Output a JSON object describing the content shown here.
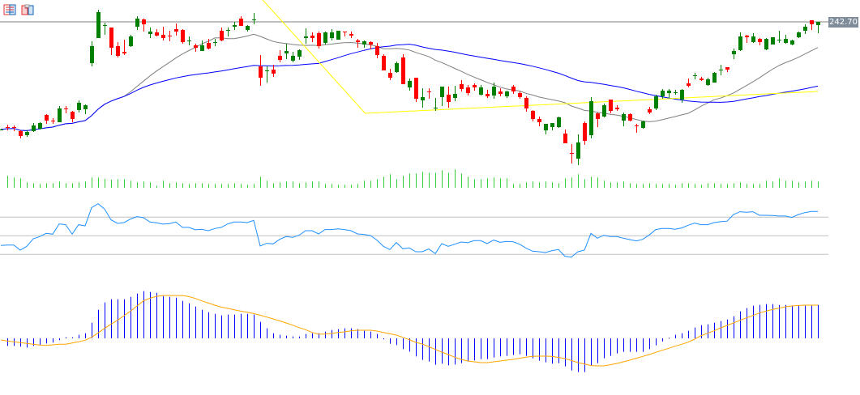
{
  "toolbar": {
    "icons": [
      "list-view-icon",
      "template-icon"
    ]
  },
  "price_label": "242.70",
  "colors": {
    "bull": "#008000",
    "bear": "#ff0000",
    "volume": "#32cd32",
    "rsi": "#1e90ff",
    "macd_hist": "#0000ff",
    "macd_signal": "#ffa500",
    "ma_fast": "#808080",
    "ma_slow": "#0000ff",
    "trendline": "#ffff00",
    "levels": "#c0c0c0",
    "price_line": "#808080"
  },
  "chart_data": {
    "type": "candlestick",
    "title": "",
    "last_price": 242.7,
    "ma_fast_period": 20,
    "ma_slow_period": 50,
    "ohlc": [
      [
        229.4,
        229.5,
        229.3,
        229.4
      ],
      [
        229.7,
        230.0,
        229.3,
        229.6
      ],
      [
        229.7,
        229.9,
        229.2,
        229.6
      ],
      [
        229.2,
        229.3,
        228.3,
        228.6
      ],
      [
        228.7,
        229.3,
        228.5,
        229.1
      ],
      [
        229.2,
        230.2,
        229.1,
        229.9
      ],
      [
        229.5,
        230.3,
        229.4,
        230.2
      ],
      [
        231.2,
        231.3,
        230.1,
        230.5
      ],
      [
        230.5,
        230.8,
        230.1,
        230.4
      ],
      [
        230.3,
        232.3,
        230.3,
        232.0
      ],
      [
        232.0,
        232.3,
        231.4,
        231.9
      ],
      [
        231.6,
        231.7,
        230.3,
        230.7
      ],
      [
        231.8,
        233.0,
        231.5,
        232.7
      ],
      [
        231.9,
        232.5,
        231.3,
        232.4
      ],
      [
        237.6,
        240.3,
        237.2,
        239.7
      ],
      [
        240.7,
        244.2,
        240.7,
        243.9
      ],
      [
        242.2,
        242.6,
        241.1,
        242.3
      ],
      [
        242.0,
        242.0,
        238.6,
        239.5
      ],
      [
        239.7,
        240.2,
        238.3,
        238.5
      ],
      [
        239.0,
        240.5,
        238.6,
        238.8
      ],
      [
        239.7,
        241.1,
        239.6,
        240.9
      ],
      [
        242.1,
        243.4,
        241.7,
        243.1
      ],
      [
        243.0,
        243.1,
        241.5,
        242.4
      ],
      [
        241.2,
        242.0,
        240.7,
        241.5
      ],
      [
        241.4,
        241.8,
        240.9,
        241.0
      ],
      [
        241.1,
        242.1,
        240.4,
        240.7
      ],
      [
        241.0,
        241.6,
        240.3,
        240.9
      ],
      [
        241.8,
        242.5,
        241.0,
        241.5
      ],
      [
        241.7,
        241.8,
        240.0,
        240.2
      ],
      [
        240.4,
        240.9,
        239.8,
        240.4
      ],
      [
        239.8,
        240.0,
        239.0,
        239.5
      ],
      [
        239.1,
        240.4,
        239.1,
        239.8
      ],
      [
        240.1,
        240.6,
        239.3,
        239.4
      ],
      [
        240.2,
        240.6,
        239.7,
        240.2
      ],
      [
        241.6,
        242.0,
        240.3,
        240.4
      ],
      [
        241.6,
        242.0,
        240.9,
        241.7
      ],
      [
        242.1,
        242.7,
        241.7,
        242.3
      ],
      [
        243.1,
        243.4,
        242.2,
        242.2
      ],
      [
        241.7,
        242.3,
        241.5,
        242.2
      ],
      [
        242.9,
        243.8,
        242.4,
        243.0
      ],
      [
        237.2,
        238.6,
        234.8,
        235.8
      ],
      [
        236.7,
        237.2,
        235.2,
        236.7
      ],
      [
        236.8,
        237.4,
        235.9,
        236.3
      ],
      [
        238.5,
        239.2,
        237.7,
        238.0
      ],
      [
        238.8,
        240.0,
        238.1,
        239.1
      ],
      [
        237.9,
        239.0,
        237.7,
        238.5
      ],
      [
        238.4,
        239.3,
        238.0,
        239.2
      ],
      [
        240.7,
        241.9,
        240.0,
        240.9
      ],
      [
        241.0,
        241.4,
        240.2,
        240.7
      ],
      [
        241.3,
        241.5,
        239.4,
        239.7
      ],
      [
        240.1,
        241.5,
        239.9,
        241.4
      ],
      [
        240.7,
        241.8,
        240.4,
        241.4
      ],
      [
        240.5,
        241.6,
        240.5,
        241.6
      ],
      [
        241.5,
        241.5,
        240.9,
        241.4
      ],
      [
        241.2,
        241.5,
        240.7,
        241.0
      ],
      [
        240.4,
        240.6,
        239.5,
        240.2
      ],
      [
        239.9,
        240.4,
        239.5,
        240.3
      ],
      [
        240.2,
        240.3,
        239.3,
        239.9
      ],
      [
        239.7,
        240.1,
        238.2,
        238.6
      ],
      [
        238.5,
        238.7,
        236.7,
        236.7
      ],
      [
        236.4,
        236.9,
        235.5,
        235.8
      ],
      [
        236.5,
        237.8,
        236.4,
        237.6
      ],
      [
        238.3,
        238.7,
        235.0,
        235.0
      ],
      [
        234.6,
        235.7,
        234.2,
        235.4
      ],
      [
        235.8,
        235.8,
        232.8,
        233.2
      ],
      [
        233.0,
        234.5,
        232.1,
        233.4
      ],
      [
        234.1,
        234.5,
        233.2,
        234.0
      ],
      [
        232.0,
        233.3,
        231.7,
        232.1
      ],
      [
        233.4,
        234.7,
        232.3,
        234.7
      ],
      [
        233.7,
        234.7,
        232.1,
        232.8
      ],
      [
        233.3,
        234.8,
        232.9,
        233.8
      ],
      [
        235.0,
        235.5,
        234.1,
        234.4
      ],
      [
        234.6,
        234.9,
        233.6,
        233.9
      ],
      [
        234.9,
        235.1,
        234.2,
        234.6
      ],
      [
        233.7,
        234.9,
        233.6,
        234.6
      ],
      [
        233.8,
        234.3,
        233.3,
        233.5
      ],
      [
        233.6,
        235.2,
        233.2,
        234.7
      ],
      [
        234.1,
        234.5,
        233.5,
        233.8
      ],
      [
        233.5,
        234.2,
        233.3,
        234.1
      ],
      [
        234.7,
        234.9,
        233.8,
        234.1
      ],
      [
        233.9,
        234.1,
        233.2,
        233.4
      ],
      [
        233.3,
        233.5,
        231.6,
        232.0
      ],
      [
        231.7,
        231.8,
        230.4,
        230.7
      ],
      [
        230.7,
        231.0,
        229.8,
        230.3
      ],
      [
        229.3,
        230.1,
        228.8,
        230.1
      ],
      [
        229.7,
        230.2,
        229.3,
        230.2
      ],
      [
        229.7,
        231.0,
        229.6,
        230.9
      ],
      [
        228.9,
        229.4,
        227.7,
        227.7
      ],
      [
        226.5,
        227.6,
        225.2,
        226.4
      ],
      [
        225.8,
        228.8,
        225.0,
        227.8
      ],
      [
        230.2,
        230.4,
        227.5,
        228.0
      ],
      [
        228.7,
        233.4,
        228.3,
        232.9
      ],
      [
        231.4,
        231.5,
        229.7,
        230.7
      ],
      [
        231.0,
        232.6,
        230.9,
        232.4
      ],
      [
        233.1,
        233.1,
        231.4,
        231.7
      ],
      [
        232.1,
        232.4,
        231.7,
        231.9
      ],
      [
        230.5,
        231.5,
        229.8,
        231.3
      ],
      [
        231.3,
        231.4,
        230.4,
        230.5
      ],
      [
        229.9,
        230.1,
        229.0,
        229.8
      ],
      [
        229.6,
        230.5,
        229.5,
        230.4
      ],
      [
        231.9,
        232.2,
        231.3,
        231.5
      ],
      [
        232.0,
        233.7,
        231.8,
        233.5
      ],
      [
        233.5,
        234.4,
        233.2,
        234.2
      ],
      [
        233.9,
        234.4,
        233.3,
        234.2
      ],
      [
        234.0,
        234.3,
        233.7,
        234.0
      ],
      [
        233.1,
        234.4,
        232.7,
        234.3
      ],
      [
        235.1,
        235.7,
        234.6,
        234.8
      ],
      [
        236.1,
        236.4,
        235.6,
        236.1
      ],
      [
        235.7,
        235.9,
        235.4,
        235.5
      ],
      [
        234.9,
        235.8,
        234.8,
        235.6
      ],
      [
        235.2,
        236.5,
        235.2,
        236.4
      ],
      [
        236.8,
        237.4,
        236.1,
        236.8
      ],
      [
        237.1,
        237.1,
        236.5,
        236.8
      ],
      [
        238.7,
        239.4,
        238.1,
        239.1
      ],
      [
        239.2,
        241.4,
        239.1,
        240.9
      ],
      [
        241.0,
        241.1,
        240.1,
        240.8
      ],
      [
        240.2,
        241.3,
        240.1,
        240.9
      ],
      [
        240.6,
        240.7,
        239.8,
        240.2
      ],
      [
        239.3,
        240.7,
        239.2,
        240.6
      ],
      [
        239.9,
        240.8,
        239.9,
        240.8
      ],
      [
        240.4,
        241.6,
        240.1,
        240.5
      ],
      [
        240.1,
        241.1,
        240.0,
        240.6
      ],
      [
        239.9,
        240.5,
        239.8,
        240.4
      ],
      [
        240.8,
        241.5,
        240.7,
        241.4
      ],
      [
        241.6,
        242.4,
        241.2,
        242.1
      ],
      [
        242.9,
        242.9,
        241.7,
        242.4
      ],
      [
        242.3,
        242.7,
        241.3,
        242.7
      ]
    ],
    "trendline": [
      {
        "index": 40.4,
        "price": 245.4
      },
      {
        "index": 56.2,
        "price": 231.4
      },
      {
        "index": 126,
        "price": 234.1
      }
    ],
    "volume": [
      0,
      44,
      38,
      35,
      20,
      17,
      14,
      17,
      17,
      23,
      17,
      17,
      20,
      23,
      38,
      38,
      33,
      30,
      32,
      32,
      26,
      20,
      23,
      20,
      8,
      26,
      17,
      20,
      17,
      14,
      17,
      17,
      14,
      14,
      14,
      14,
      17,
      14,
      11,
      14,
      41,
      26,
      17,
      20,
      23,
      23,
      17,
      20,
      23,
      23,
      14,
      14,
      11,
      11,
      11,
      14,
      26,
      26,
      32,
      41,
      50,
      32,
      44,
      53,
      53,
      59,
      56,
      56,
      65,
      56,
      68,
      53,
      41,
      32,
      32,
      35,
      38,
      35,
      35,
      14,
      14,
      20,
      23,
      20,
      23,
      20,
      17,
      35,
      38,
      50,
      32,
      41,
      38,
      26,
      20,
      20,
      23,
      17,
      14,
      14,
      17,
      14,
      14,
      14,
      11,
      17,
      17,
      14,
      11,
      17,
      17,
      14,
      14,
      17,
      20,
      14,
      14,
      14,
      26,
      23,
      35,
      26,
      26,
      20,
      23,
      26,
      23
    ],
    "rsi": {
      "levels": [
        70,
        50,
        30
      ],
      "values": [
        39.6,
        40.1,
        40.1,
        34.6,
        38.7,
        46.8,
        49.1,
        52.6,
        51.7,
        62.8,
        61.9,
        51.7,
        61.9,
        60.7,
        80.2,
        84.5,
        78.7,
        67.1,
        63.3,
        64.2,
        68.0,
        70.6,
        69.4,
        64.8,
        63.9,
        62.5,
        63.1,
        64.8,
        59.0,
        59.0,
        56.4,
        57.0,
        55.5,
        57.8,
        59.0,
        62.8,
        64.8,
        64.8,
        64.2,
        66.5,
        39.0,
        41.9,
        41.3,
        46.2,
        49.1,
        48.3,
        50.6,
        55.5,
        55.5,
        52.0,
        56.7,
        56.7,
        57.5,
        56.7,
        55.5,
        52.0,
        51.5,
        50.3,
        45.4,
        38.7,
        35.2,
        42.8,
        36.1,
        37.0,
        32.9,
        32.9,
        35.8,
        30.9,
        41.6,
        38.7,
        41.0,
        43.3,
        42.5,
        44.8,
        44.8,
        41.6,
        45.4,
        43.0,
        43.9,
        43.6,
        41.0,
        36.7,
        33.5,
        32.9,
        32.0,
        34.1,
        35.2,
        28.0,
        27.1,
        32.9,
        34.6,
        52.6,
        47.4,
        50.6,
        49.1,
        49.1,
        47.4,
        45.9,
        44.5,
        46.2,
        50.9,
        56.7,
        57.8,
        57.8,
        57.0,
        58.4,
        61.3,
        63.6,
        61.9,
        61.9,
        64.2,
        65.1,
        65.7,
        72.9,
        75.8,
        75.2,
        75.8,
        72.0,
        72.0,
        71.8,
        71.2,
        71.2,
        69.7,
        72.9,
        74.9,
        76.1,
        76.1
      ]
    },
    "macd": {
      "histogram": [
        0,
        -2.8,
        -2.8,
        -3.1,
        -3.4,
        -2.8,
        -2.5,
        -1.9,
        -1.6,
        -0.7,
        0.4,
        0.4,
        1.3,
        1.9,
        5.8,
        10.6,
        13.3,
        14.5,
        14.5,
        14.5,
        15.4,
        16.6,
        17.5,
        17.2,
        16.9,
        15.7,
        15.4,
        15.1,
        13.9,
        13.0,
        11.8,
        10.6,
        9.7,
        9.1,
        8.5,
        8.8,
        8.8,
        9.1,
        9.1,
        8.8,
        6.1,
        3.7,
        1.9,
        1.3,
        1.0,
        0.7,
        0.7,
        1.6,
        1.9,
        1.9,
        2.5,
        3.1,
        3.4,
        3.7,
        3.7,
        3.4,
        2.8,
        2.5,
        1.6,
        -0.4,
        -2.0,
        -2.5,
        -4.0,
        -4.9,
        -6.7,
        -8.0,
        -8.6,
        -9.8,
        -9.4,
        -10.0,
        -9.7,
        -9.2,
        -8.6,
        -8.2,
        -7.7,
        -7.7,
        -7.1,
        -6.7,
        -6.5,
        -6.2,
        -5.9,
        -6.5,
        -7.4,
        -8.3,
        -8.9,
        -9.4,
        -9.2,
        -10.4,
        -11.9,
        -12.5,
        -12.5,
        -10.0,
        -9.2,
        -7.4,
        -6.5,
        -5.6,
        -5.0,
        -5.0,
        -5.0,
        -5.0,
        -4.0,
        -2.6,
        -1.1,
        0.2,
        1.3,
        1.9,
        2.8,
        4.0,
        4.9,
        5.2,
        5.8,
        6.4,
        7.0,
        8.2,
        10.0,
        11.2,
        12.1,
        12.4,
        12.7,
        12.7,
        12.4,
        12.4,
        12.1,
        12.1,
        12.1,
        12.1,
        12.4
      ],
      "signal": [
        -0.6,
        -1.0,
        -1.3,
        -1.6,
        -1.9,
        -2.2,
        -2.5,
        -2.6,
        -2.4,
        -2.2,
        -2.2,
        -1.7,
        -1.3,
        -0.7,
        0.4,
        2.0,
        3.7,
        5.3,
        6.7,
        8.4,
        10.1,
        12.0,
        13.9,
        14.9,
        15.6,
        15.9,
        15.9,
        15.9,
        15.9,
        15.5,
        14.8,
        13.9,
        13.1,
        12.3,
        11.6,
        11.1,
        10.6,
        10.1,
        9.7,
        9.2,
        8.6,
        7.9,
        7.2,
        6.5,
        5.7,
        4.9,
        4.0,
        3.2,
        2.2,
        1.6,
        1.6,
        1.8,
        2.2,
        2.4,
        2.8,
        3.0,
        3.0,
        3.0,
        2.7,
        2.2,
        1.7,
        1.2,
        0.4,
        -0.5,
        -1.5,
        -2.1,
        -3.1,
        -4.1,
        -5.1,
        -6.0,
        -7.0,
        -7.8,
        -8.4,
        -8.7,
        -9.0,
        -9.0,
        -8.7,
        -8.4,
        -8.1,
        -7.8,
        -7.4,
        -7.0,
        -6.7,
        -6.6,
        -6.6,
        -6.7,
        -7.1,
        -7.5,
        -8.2,
        -9.0,
        -9.5,
        -10.1,
        -10.2,
        -10.2,
        -9.8,
        -9.3,
        -8.7,
        -8.1,
        -7.4,
        -6.7,
        -6.0,
        -5.2,
        -4.4,
        -3.7,
        -2.9,
        -2.2,
        -1.4,
        -0.3,
        1.0,
        1.9,
        2.8,
        3.9,
        4.8,
        5.7,
        6.7,
        7.6,
        8.5,
        9.4,
        10.1,
        10.7,
        11.2,
        11.7,
        12.0,
        12.2,
        12.3,
        12.3,
        12.3
      ]
    }
  }
}
